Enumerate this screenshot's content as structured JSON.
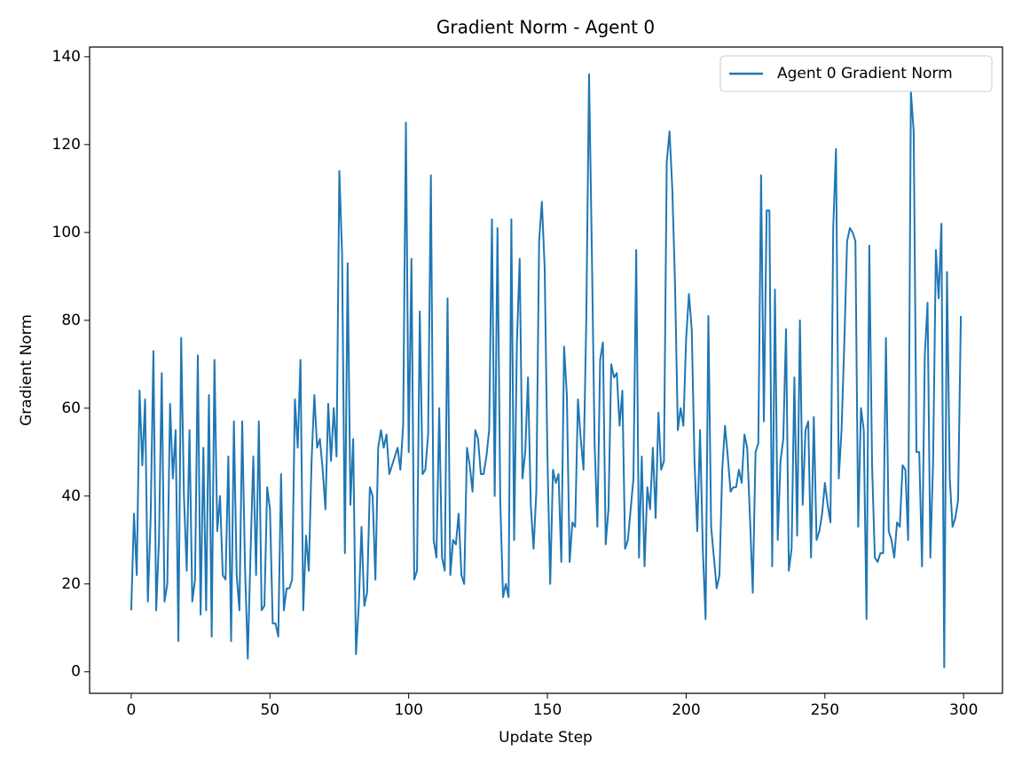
{
  "chart_data": {
    "type": "line",
    "title": "Gradient Norm - Agent 0",
    "xlabel": "Update Step",
    "ylabel": "Gradient Norm",
    "x": [
      0,
      1,
      2,
      3,
      4,
      5,
      6,
      7,
      8,
      9,
      10,
      11,
      12,
      13,
      14,
      15,
      16,
      17,
      18,
      19,
      20,
      21,
      22,
      23,
      24,
      25,
      26,
      27,
      28,
      29,
      30,
      31,
      32,
      33,
      34,
      35,
      36,
      37,
      38,
      39,
      40,
      41,
      42,
      43,
      44,
      45,
      46,
      47,
      48,
      49,
      50,
      51,
      52,
      53,
      54,
      55,
      56,
      57,
      58,
      59,
      60,
      61,
      62,
      63,
      64,
      65,
      66,
      67,
      68,
      69,
      70,
      71,
      72,
      73,
      74,
      75,
      76,
      77,
      78,
      79,
      80,
      81,
      82,
      83,
      84,
      85,
      86,
      87,
      88,
      89,
      90,
      91,
      92,
      93,
      94,
      95,
      96,
      97,
      98,
      99,
      100,
      101,
      102,
      103,
      104,
      105,
      106,
      107,
      108,
      109,
      110,
      111,
      112,
      113,
      114,
      115,
      116,
      117,
      118,
      119,
      120,
      121,
      122,
      123,
      124,
      125,
      126,
      127,
      128,
      129,
      130,
      131,
      132,
      133,
      134,
      135,
      136,
      137,
      138,
      139,
      140,
      141,
      142,
      143,
      144,
      145,
      146,
      147,
      148,
      149,
      150,
      151,
      152,
      153,
      154,
      155,
      156,
      157,
      158,
      159,
      160,
      161,
      162,
      163,
      164,
      165,
      166,
      167,
      168,
      169,
      170,
      171,
      172,
      173,
      174,
      175,
      176,
      177,
      178,
      179,
      180,
      181,
      182,
      183,
      184,
      185,
      186,
      187,
      188,
      189,
      190,
      191,
      192,
      193,
      194,
      195,
      196,
      197,
      198,
      199,
      200,
      201,
      202,
      203,
      204,
      205,
      206,
      207,
      208,
      209,
      210,
      211,
      212,
      213,
      214,
      215,
      216,
      217,
      218,
      219,
      220,
      221,
      222,
      223,
      224,
      225,
      226,
      227,
      228,
      229,
      230,
      231,
      232,
      233,
      234,
      235,
      236,
      237,
      238,
      239,
      240,
      241,
      242,
      243,
      244,
      245,
      246,
      247,
      248,
      249,
      250,
      251,
      252,
      253,
      254,
      255,
      256,
      257,
      258,
      259,
      260,
      261,
      262,
      263,
      264,
      265,
      266,
      267,
      268,
      269,
      270,
      271,
      272,
      273,
      274,
      275,
      276,
      277,
      278,
      279,
      280,
      281,
      282,
      283,
      284,
      285,
      286,
      287,
      288,
      289,
      290,
      291,
      292,
      293,
      294,
      295,
      296,
      297,
      298,
      299
    ],
    "series": [
      {
        "name": "Agent 0 Gradient Norm",
        "color": "#1f77b4",
        "values": [
          14,
          36,
          22,
          64,
          47,
          62,
          16,
          35,
          73,
          14,
          30,
          68,
          16,
          20,
          61,
          44,
          55,
          7,
          76,
          40,
          23,
          55,
          16,
          21,
          72,
          13,
          51,
          14,
          63,
          8,
          71,
          32,
          40,
          22,
          21,
          49,
          7,
          57,
          22,
          14,
          57,
          24,
          3,
          27,
          49,
          22,
          57,
          14,
          15,
          42,
          37,
          11,
          11,
          8,
          45,
          14,
          19,
          19,
          21,
          62,
          51,
          71,
          14,
          31,
          23,
          48,
          63,
          51,
          53,
          46,
          37,
          61,
          48,
          60,
          49,
          114,
          95,
          27,
          93,
          38,
          53,
          4,
          15,
          33,
          15,
          18,
          42,
          40,
          21,
          51,
          55,
          51,
          54,
          45,
          47,
          49,
          51,
          46,
          56,
          125,
          50,
          94,
          21,
          23,
          82,
          45,
          46,
          54,
          113,
          30,
          26,
          60,
          26,
          23,
          85,
          22,
          30,
          29,
          36,
          22,
          20,
          51,
          47,
          41,
          55,
          53,
          45,
          45,
          49,
          55,
          103,
          40,
          101,
          39,
          17,
          20,
          17,
          103,
          30,
          75,
          94,
          44,
          50,
          67,
          38,
          28,
          41,
          98,
          107,
          92,
          49,
          20,
          46,
          43,
          45,
          25,
          74,
          63,
          25,
          34,
          33,
          62,
          53,
          46,
          80,
          136,
          96,
          52,
          33,
          71,
          75,
          29,
          37,
          70,
          67,
          68,
          56,
          64,
          28,
          30,
          37,
          44,
          96,
          26,
          49,
          24,
          42,
          37,
          51,
          35,
          59,
          46,
          48,
          116,
          123,
          110,
          88,
          55,
          60,
          56,
          76,
          86,
          78,
          48,
          32,
          55,
          28,
          12,
          81,
          33,
          26,
          19,
          22,
          46,
          56,
          49,
          41,
          42,
          42,
          46,
          43,
          54,
          51,
          35,
          18,
          50,
          52,
          113,
          57,
          105,
          105,
          24,
          87,
          30,
          48,
          53,
          78,
          23,
          28,
          67,
          31,
          80,
          38,
          55,
          57,
          26,
          58,
          30,
          32,
          36,
          43,
          38,
          34,
          101,
          119,
          44,
          55,
          75,
          98,
          101,
          100,
          98,
          33,
          60,
          55,
          12,
          97,
          47,
          26,
          25,
          27,
          27,
          76,
          32,
          30,
          26,
          34,
          33,
          47,
          46,
          30,
          132,
          123,
          50,
          50,
          24,
          72,
          84,
          26,
          48,
          96,
          85,
          102,
          1,
          91,
          44,
          33,
          35,
          39,
          81
        ]
      }
    ],
    "xlim": [
      -15,
      314
    ],
    "ylim": [
      -4.9,
      142.2
    ],
    "xticks": [
      0,
      50,
      100,
      150,
      200,
      250,
      300
    ],
    "yticks": [
      0,
      20,
      40,
      60,
      80,
      100,
      120,
      140
    ],
    "legend": "upper right"
  }
}
